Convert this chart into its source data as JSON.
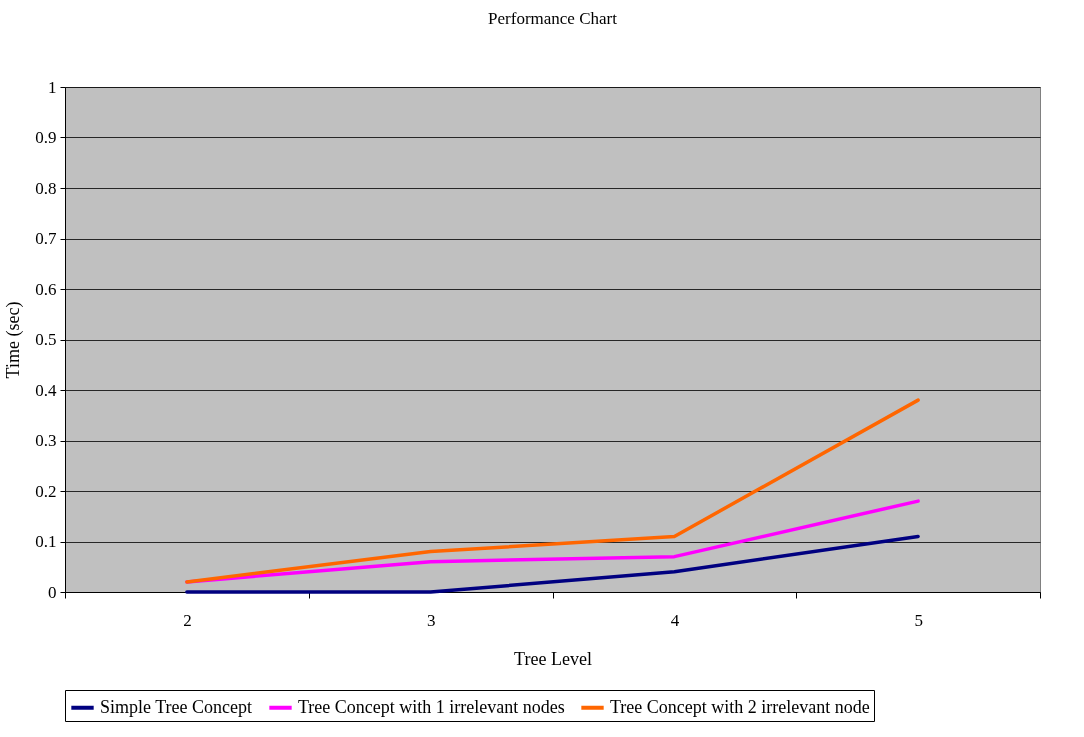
{
  "chart_data": {
    "type": "line",
    "title": "Performance Chart",
    "xlabel": "Tree Level",
    "ylabel": "Time (sec)",
    "categories": [
      "2",
      "3",
      "4",
      "5"
    ],
    "ylim": [
      0,
      1
    ],
    "yticks": [
      0,
      0.1,
      0.2,
      0.3,
      0.4,
      0.5,
      0.6,
      0.7,
      0.8,
      0.9,
      1
    ],
    "grid": "y",
    "legend": "bottom",
    "marker": "none",
    "series": [
      {
        "name": "Simple Tree Concept",
        "color": "#000080",
        "values": [
          0,
          0,
          0.04,
          0.11
        ]
      },
      {
        "name": "Tree Concept with 1 irrelevant nodes",
        "color": "#ff00ff",
        "values": [
          0.02,
          0.06,
          0.07,
          0.18
        ]
      },
      {
        "name": "Tree Concept with 2 irrelevant node",
        "color": "#ff6600",
        "values": [
          0.02,
          0.08,
          0.11,
          0.38
        ]
      }
    ]
  }
}
